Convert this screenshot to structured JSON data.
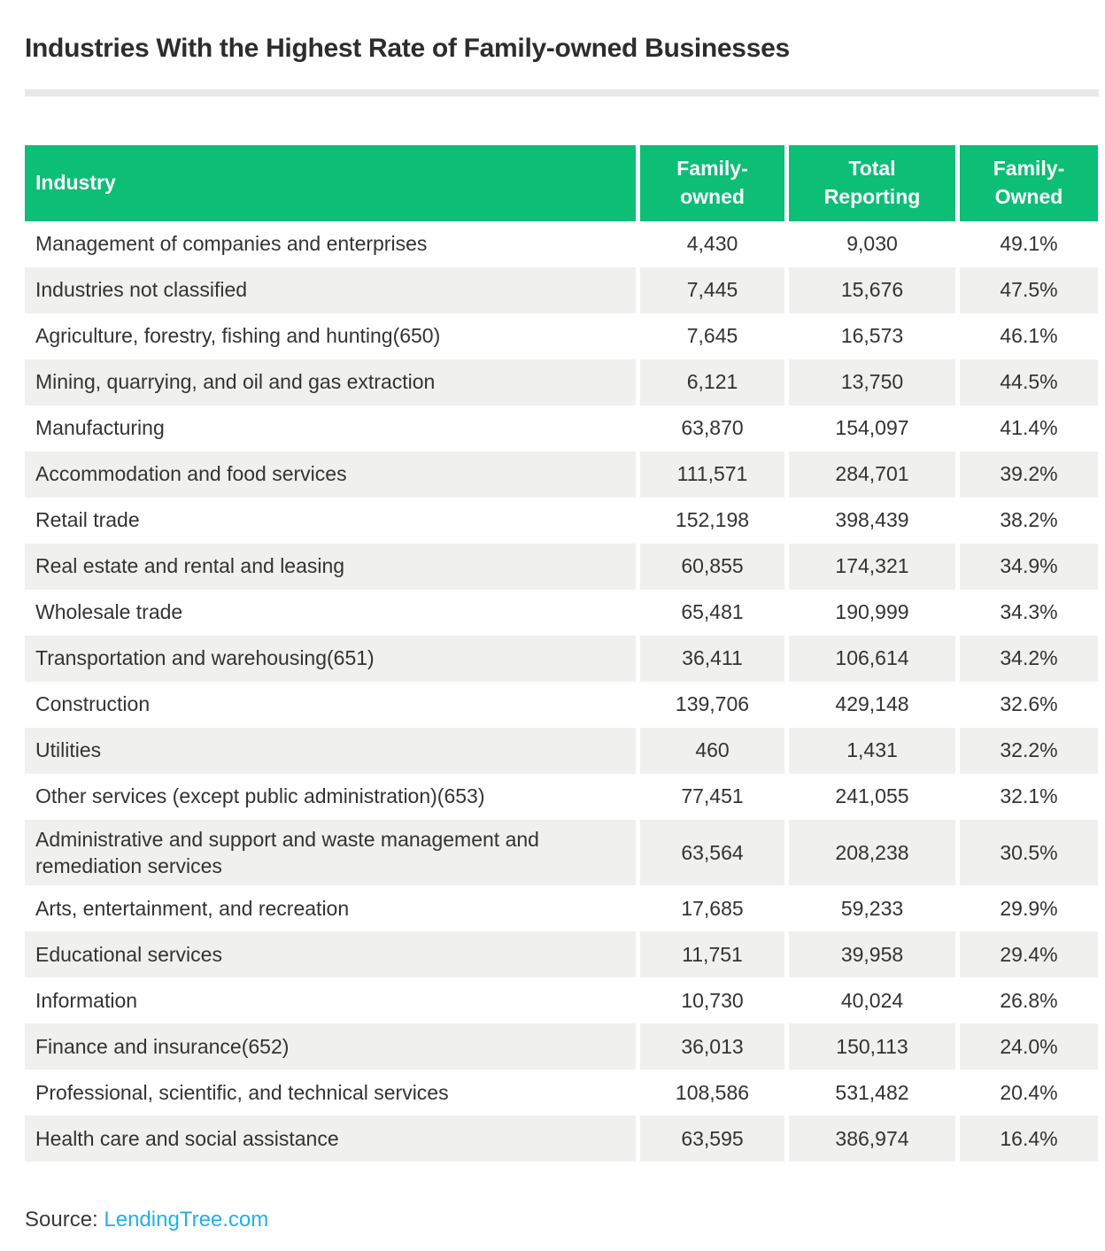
{
  "title": "Industries With the Highest Rate of Family-owned Businesses",
  "footer": {
    "source_label": "Source:",
    "source_link": "LendingTree.com"
  },
  "colors": {
    "header_green": "#0cbe76",
    "alt_row_gray": "#f0f0ef",
    "divider_gray": "#e8e8e6",
    "link_blue": "#21b0ed",
    "body_text": "#333333"
  },
  "chart_data": {
    "type": "table",
    "title": "Industries With the Highest Rate of Family-owned Businesses",
    "columns": [
      "Industry",
      "Family-\nowned",
      "Total\nReporting",
      "Family-\nOwned"
    ],
    "rows": [
      {
        "industry": "Management of companies and enterprises",
        "family_owned": "4,430",
        "total_reporting": "9,030",
        "family_owned_pct": "49.1%"
      },
      {
        "industry": "Industries not classified",
        "family_owned": "7,445",
        "total_reporting": "15,676",
        "family_owned_pct": "47.5%"
      },
      {
        "industry": "Agriculture, forestry, fishing and hunting(650)",
        "family_owned": "7,645",
        "total_reporting": "16,573",
        "family_owned_pct": "46.1%"
      },
      {
        "industry": "Mining, quarrying, and oil and gas extraction",
        "family_owned": "6,121",
        "total_reporting": "13,750",
        "family_owned_pct": "44.5%"
      },
      {
        "industry": "Manufacturing",
        "family_owned": "63,870",
        "total_reporting": "154,097",
        "family_owned_pct": "41.4%"
      },
      {
        "industry": "Accommodation and food services",
        "family_owned": "111,571",
        "total_reporting": "284,701",
        "family_owned_pct": "39.2%"
      },
      {
        "industry": "Retail trade",
        "family_owned": "152,198",
        "total_reporting": "398,439",
        "family_owned_pct": "38.2%"
      },
      {
        "industry": "Real estate and rental and leasing",
        "family_owned": "60,855",
        "total_reporting": "174,321",
        "family_owned_pct": "34.9%"
      },
      {
        "industry": "Wholesale trade",
        "family_owned": "65,481",
        "total_reporting": "190,999",
        "family_owned_pct": "34.3%"
      },
      {
        "industry": "Transportation and warehousing(651)",
        "family_owned": "36,411",
        "total_reporting": "106,614",
        "family_owned_pct": "34.2%"
      },
      {
        "industry": "Construction",
        "family_owned": "139,706",
        "total_reporting": "429,148",
        "family_owned_pct": "32.6%"
      },
      {
        "industry": "Utilities",
        "family_owned": "460",
        "total_reporting": "1,431",
        "family_owned_pct": "32.2%"
      },
      {
        "industry": "Other services (except public administration)(653)",
        "family_owned": "77,451",
        "total_reporting": "241,055",
        "family_owned_pct": "32.1%"
      },
      {
        "industry": "Administrative and support and waste management and remediation services",
        "family_owned": "63,564",
        "total_reporting": "208,238",
        "family_owned_pct": "30.5%"
      },
      {
        "industry": "Arts, entertainment, and recreation",
        "family_owned": "17,685",
        "total_reporting": "59,233",
        "family_owned_pct": "29.9%"
      },
      {
        "industry": "Educational services",
        "family_owned": "11,751",
        "total_reporting": "39,958",
        "family_owned_pct": "29.4%"
      },
      {
        "industry": "Information",
        "family_owned": "10,730",
        "total_reporting": "40,024",
        "family_owned_pct": "26.8%"
      },
      {
        "industry": "Finance and insurance(652)",
        "family_owned": "36,013",
        "total_reporting": "150,113",
        "family_owned_pct": "24.0%"
      },
      {
        "industry": "Professional, scientific, and technical services",
        "family_owned": "108,586",
        "total_reporting": "531,482",
        "family_owned_pct": "20.4%"
      },
      {
        "industry": "Health care and social assistance",
        "family_owned": "63,595",
        "total_reporting": "386,974",
        "family_owned_pct": "16.4%"
      }
    ]
  }
}
